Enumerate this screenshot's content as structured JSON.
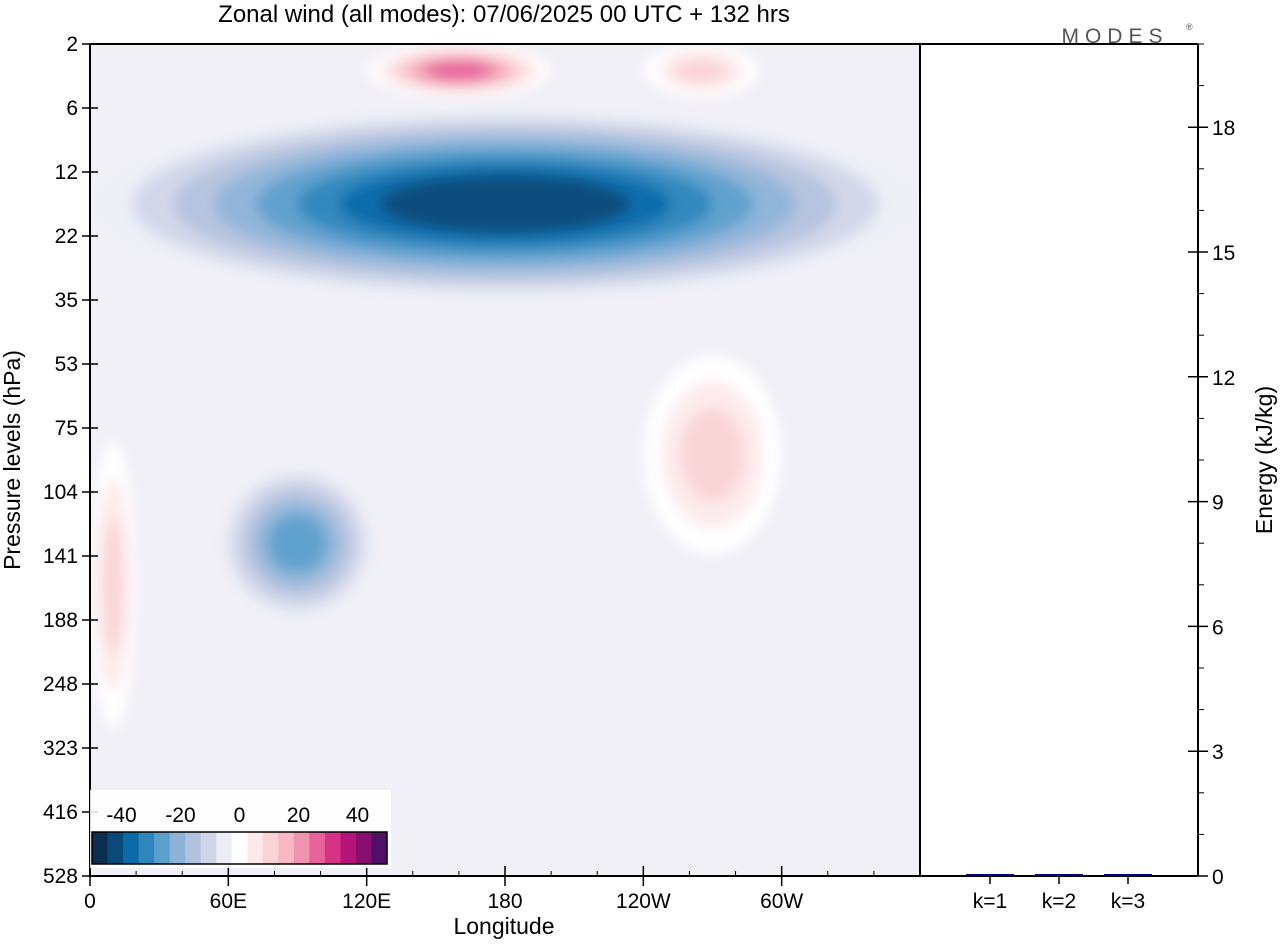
{
  "brand": {
    "logo_text": "MODES",
    "logo_mark": "®"
  },
  "chart_data": [
    {
      "type": "heatmap",
      "title": "Zonal wind (all modes):  07/06/2025  00 UTC  + 132 hrs",
      "xlabel": "Longitude",
      "ylabel": "Pressure levels (hPa)",
      "x_ticks": [
        "0",
        "60E",
        "120E",
        "180",
        "120W",
        "60W"
      ],
      "x_tick_degrees": [
        0,
        60,
        120,
        180,
        240,
        300
      ],
      "xlim": [
        0,
        360
      ],
      "y_ticks": [
        "2",
        "6",
        "12",
        "22",
        "35",
        "53",
        "75",
        "104",
        "141",
        "188",
        "248",
        "323",
        "416",
        "528"
      ],
      "ylim": [
        2,
        528
      ],
      "colorbar": {
        "tick_labels": [
          "-40",
          "-20",
          "0",
          "20",
          "40"
        ],
        "tick_values": [
          -40,
          -20,
          0,
          20,
          40
        ],
        "levels": [
          -45,
          -40,
          -35,
          -30,
          -25,
          -20,
          -15,
          -10,
          -5,
          5,
          10,
          15,
          20,
          25,
          30,
          35,
          40,
          45
        ],
        "colors": [
          "#0d2f4f",
          "#0b4a78",
          "#0a6aa8",
          "#2f86bd",
          "#5ba0cc",
          "#8db4d8",
          "#b2c2de",
          "#d0d6e8",
          "#eceef6",
          "#ffffff",
          "#fde9ea",
          "#fad3d6",
          "#f7b8c4",
          "#f093ae",
          "#e7619a",
          "#d73386",
          "#b5127a",
          "#870f6e",
          "#520f66"
        ]
      },
      "features": [
        {
          "name": "stratospheric easterly jet",
          "pressure": [
            6,
            35
          ],
          "lon": [
            0,
            360
          ],
          "peak_value": -40
        },
        {
          "name": "upper stratosphere westerly",
          "pressure": [
            2,
            5
          ],
          "lon": [
            120,
            200
          ],
          "peak_value": 30
        },
        {
          "name": "upper stratosphere westerly",
          "pressure": [
            2,
            5
          ],
          "lon": [
            240,
            290
          ],
          "peak_value": 15
        },
        {
          "name": "tropospheric easterly",
          "pressure": [
            90,
            190
          ],
          "lon": [
            55,
            125
          ],
          "peak_value": -25
        },
        {
          "name": "tropospheric westerly",
          "pressure": [
            50,
            140
          ],
          "lon": [
            240,
            300
          ],
          "peak_value": 15
        },
        {
          "name": "tropospheric westerly",
          "pressure": [
            80,
            300
          ],
          "lon": [
            0,
            20
          ],
          "peak_value": 15
        }
      ]
    },
    {
      "type": "bar",
      "ylabel": "Energy (kJ/kg)",
      "categories": [
        "k=1",
        "k=2",
        "k=3"
      ],
      "values": [
        0.03,
        0.01,
        0.01
      ],
      "ylim": [
        0,
        20
      ],
      "y_ticks": [
        0,
        3,
        6,
        9,
        12,
        15,
        18
      ],
      "bar_color": "#000080"
    }
  ]
}
